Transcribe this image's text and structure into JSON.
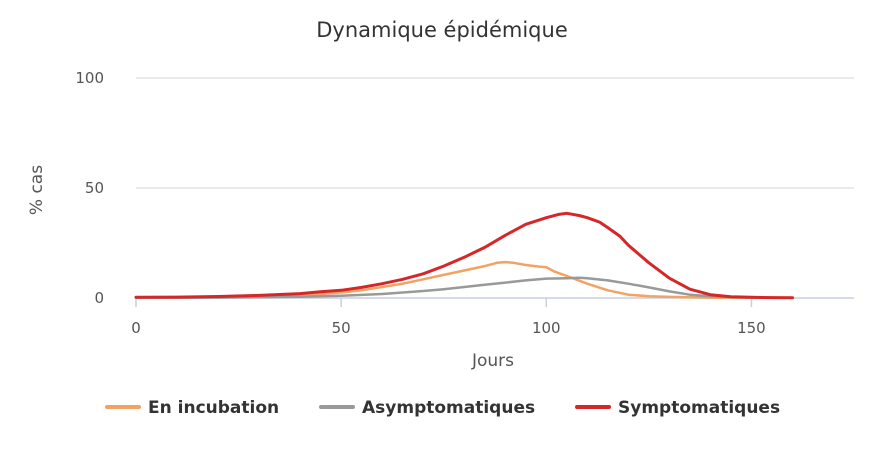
{
  "chart_data": {
    "type": "line",
    "title": "Dynamique épidémique",
    "xlabel": "Jours",
    "ylabel": "% cas",
    "xlim": [
      0,
      175
    ],
    "ylim": [
      0,
      100
    ],
    "x_ticks": [
      0,
      50,
      100,
      150
    ],
    "y_ticks": [
      0,
      50,
      100
    ],
    "grid": true,
    "legend_position": "bottom",
    "series": [
      {
        "name": "En incubation",
        "color": "#f4a261",
        "x": [
          0,
          10,
          20,
          30,
          40,
          45,
          50,
          55,
          60,
          65,
          70,
          75,
          80,
          85,
          88,
          90,
          92,
          95,
          98,
          100,
          102,
          105,
          110,
          115,
          120,
          125,
          130,
          135,
          140,
          150,
          160
        ],
        "y": [
          0.2,
          0.2,
          0.4,
          0.8,
          1.3,
          1.8,
          2.5,
          3.5,
          5.0,
          6.5,
          8.5,
          10.5,
          12.5,
          14.5,
          16.0,
          16.3,
          16.0,
          15.0,
          14.3,
          14.0,
          12.0,
          10.0,
          6.5,
          3.5,
          1.5,
          0.8,
          0.5,
          0.3,
          0.2,
          0.1,
          0.1
        ]
      },
      {
        "name": "Asymptomatiques",
        "color": "#999999",
        "x": [
          0,
          20,
          40,
          50,
          60,
          65,
          70,
          75,
          80,
          85,
          90,
          95,
          100,
          105,
          108,
          110,
          115,
          120,
          125,
          130,
          135,
          140,
          145,
          150,
          160
        ],
        "y": [
          0.1,
          0.2,
          0.6,
          1.0,
          1.8,
          2.5,
          3.2,
          4.0,
          5.0,
          6.0,
          7.0,
          8.0,
          8.8,
          9.0,
          9.2,
          9.0,
          8.0,
          6.5,
          4.8,
          3.0,
          1.5,
          0.8,
          0.4,
          0.2,
          0.1
        ]
      },
      {
        "name": "Symptomatiques",
        "color": "#d62728",
        "x": [
          0,
          10,
          20,
          30,
          40,
          45,
          50,
          55,
          60,
          65,
          70,
          75,
          80,
          85,
          90,
          95,
          100,
          103,
          105,
          108,
          110,
          113,
          115,
          118,
          120,
          125,
          130,
          135,
          140,
          145,
          150,
          155,
          160
        ],
        "y": [
          0.3,
          0.4,
          0.7,
          1.2,
          2.0,
          2.8,
          3.5,
          4.8,
          6.5,
          8.5,
          11.0,
          14.5,
          18.5,
          23.0,
          28.5,
          33.5,
          36.5,
          38.0,
          38.5,
          37.5,
          36.5,
          34.5,
          32.0,
          28.0,
          24.0,
          16.0,
          9.0,
          4.0,
          1.5,
          0.6,
          0.3,
          0.2,
          0.1
        ]
      }
    ]
  }
}
